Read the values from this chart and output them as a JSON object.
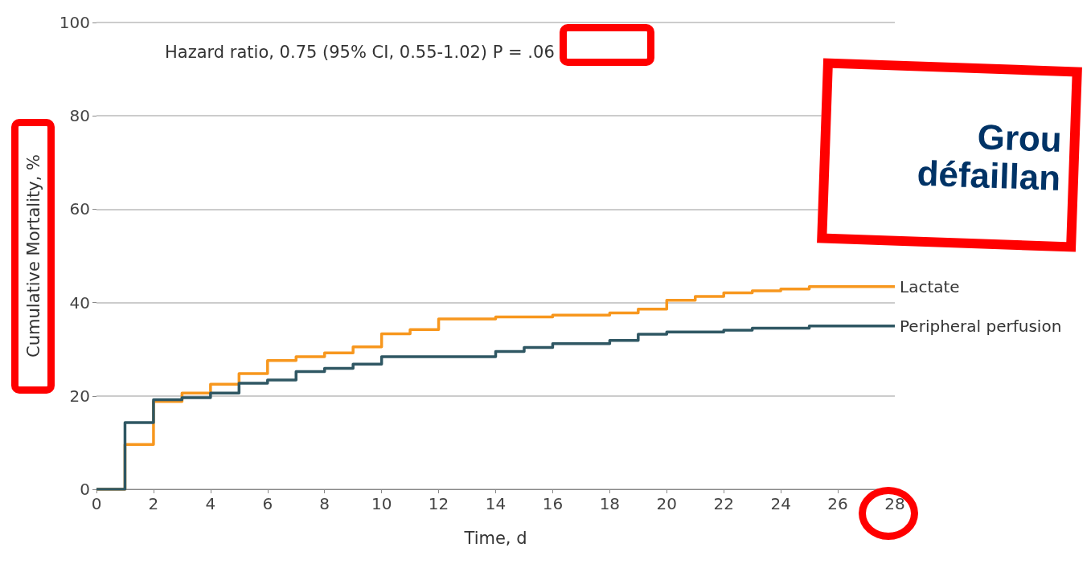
{
  "chart_data": {
    "type": "step",
    "xlabel": "Time, d",
    "ylabel": "Cumulative Mortality, %",
    "xlim": [
      0,
      28
    ],
    "xticks": [
      0,
      2,
      4,
      6,
      8,
      10,
      12,
      14,
      16,
      18,
      20,
      22,
      24,
      26,
      28
    ],
    "ylim": [
      0,
      100
    ],
    "yticks": [
      0,
      20,
      40,
      60,
      80,
      100
    ],
    "grid": "y",
    "legend": false,
    "marker": "none",
    "line_style": "solid",
    "series": [
      {
        "name": "Lactate",
        "color": "#f7971e",
        "x": [
          0,
          1,
          2,
          3,
          4,
          5,
          6,
          7,
          8,
          9,
          10,
          11,
          12,
          14,
          16,
          18,
          19,
          20,
          21,
          22,
          23,
          24,
          25,
          28
        ],
        "values": [
          0,
          9.6,
          18.8,
          20.6,
          22.5,
          24.8,
          27.6,
          28.4,
          29.2,
          30.5,
          33.3,
          34.2,
          36.5,
          36.9,
          37.3,
          37.8,
          38.6,
          40.5,
          41.3,
          42.1,
          42.5,
          42.9,
          43.4,
          43.4
        ]
      },
      {
        "name": "Peripheral perfusion",
        "color": "#2f5763",
        "x": [
          0,
          1,
          2,
          3,
          4,
          5,
          6,
          7,
          8,
          9,
          10,
          14,
          15,
          16,
          18,
          19,
          20,
          22,
          23,
          25,
          28
        ],
        "values": [
          0,
          14.3,
          19.2,
          19.6,
          20.6,
          22.7,
          23.4,
          25.2,
          25.9,
          26.8,
          28.4,
          29.5,
          30.4,
          31.2,
          31.9,
          33.2,
          33.7,
          34.1,
          34.5,
          35.0,
          35.0
        ]
      }
    ],
    "annotations": [
      "Hazard ratio, 0.75 (95% CI, 0.55-1.02) P = .06",
      "Grou",
      "défaillan"
    ]
  }
}
